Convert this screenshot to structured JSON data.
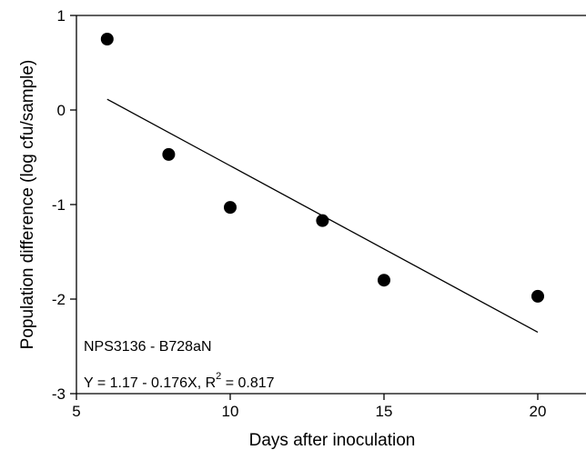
{
  "chart_data": {
    "type": "scatter",
    "title": "",
    "xlabel": "Days after inoculation",
    "ylabel": "Population difference (log cfu/sample)",
    "xlim": [
      5,
      21
    ],
    "ylim": [
      -3,
      1
    ],
    "x_ticks": [
      5,
      10,
      15,
      20
    ],
    "x_tick_labels": [
      "5",
      "10",
      "15",
      "20"
    ],
    "y_ticks": [
      -3,
      -2,
      -1,
      0,
      1
    ],
    "y_tick_labels": [
      "-3",
      "-2",
      "-1",
      "0",
      "1"
    ],
    "grid": false,
    "points": [
      {
        "x": 6,
        "y": 0.75
      },
      {
        "x": 8,
        "y": -0.47
      },
      {
        "x": 10,
        "y": -1.03
      },
      {
        "x": 13,
        "y": -1.17
      },
      {
        "x": 15,
        "y": -1.8
      },
      {
        "x": 20,
        "y": -1.97
      }
    ],
    "fit_line": {
      "intercept": 1.17,
      "slope": -0.176,
      "x_start": 6,
      "x_end": 20
    },
    "annotations": {
      "label": "NPS3136 - B728aN",
      "equation_prefix": "Y = 1.17 - 0.176X, R",
      "equation_sup": "2",
      "equation_suffix": " = 0.817"
    }
  }
}
